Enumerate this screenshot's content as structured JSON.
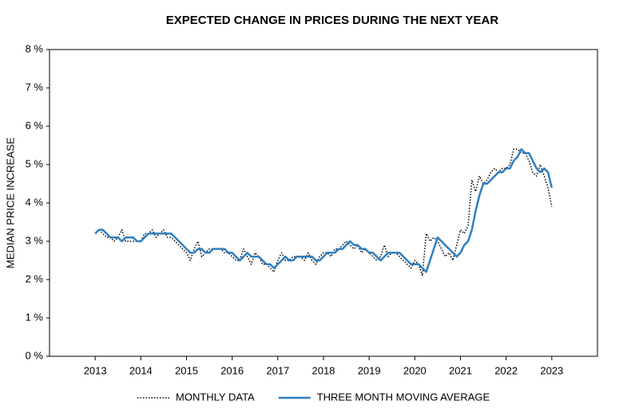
{
  "chart_data": {
    "type": "line",
    "title": "EXPECTED CHANGE IN PRICES DURING THE NEXT YEAR",
    "y_label": "MEDIAN PRICE INCREASE",
    "categories": [
      "2013",
      null,
      null,
      null,
      null,
      null,
      null,
      null,
      null,
      null,
      null,
      null,
      "2014",
      null,
      null,
      null,
      null,
      null,
      null,
      null,
      null,
      null,
      null,
      null,
      "2015",
      null,
      null,
      null,
      null,
      null,
      null,
      null,
      null,
      null,
      null,
      null,
      "2016",
      null,
      null,
      null,
      null,
      null,
      null,
      null,
      null,
      null,
      null,
      null,
      "2017",
      null,
      null,
      null,
      null,
      null,
      null,
      null,
      null,
      null,
      null,
      null,
      "2018",
      null,
      null,
      null,
      null,
      null,
      null,
      null,
      null,
      null,
      null,
      null,
      "2019",
      null,
      null,
      null,
      null,
      null,
      null,
      null,
      null,
      null,
      null,
      null,
      "2020",
      null,
      null,
      null,
      null,
      null,
      null,
      null,
      null,
      null,
      null,
      null,
      "2021",
      null,
      null,
      null,
      null,
      null,
      null,
      null,
      null,
      null,
      null,
      null,
      "2022",
      null,
      null,
      null,
      null,
      null,
      null,
      null,
      null,
      null,
      null,
      null,
      "2023"
    ],
    "series": [
      {
        "name": "MONTHLY DATA",
        "color": "#000000",
        "dash": "dotted",
        "values": [
          3.2,
          3.3,
          3.2,
          3.1,
          3.1,
          3.0,
          3.1,
          3.3,
          3.0,
          3.0,
          3.0,
          3.0,
          3.0,
          3.2,
          3.2,
          3.3,
          3.1,
          3.2,
          3.3,
          3.1,
          3.1,
          3.0,
          2.9,
          2.8,
          2.7,
          2.5,
          2.8,
          3.0,
          2.6,
          2.7,
          2.8,
          2.8,
          2.8,
          2.8,
          2.7,
          2.7,
          2.6,
          2.5,
          2.5,
          2.8,
          2.6,
          2.4,
          2.7,
          2.6,
          2.4,
          2.4,
          2.3,
          2.2,
          2.5,
          2.7,
          2.5,
          2.5,
          2.6,
          2.6,
          2.6,
          2.5,
          2.7,
          2.5,
          2.4,
          2.6,
          2.7,
          2.7,
          2.6,
          2.8,
          2.8,
          2.9,
          3.0,
          2.9,
          2.8,
          2.9,
          2.7,
          2.8,
          2.7,
          2.6,
          2.5,
          2.6,
          2.9,
          2.6,
          2.7,
          2.7,
          2.6,
          2.5,
          2.4,
          2.3,
          2.5,
          2.4,
          2.1,
          3.2,
          3.0,
          3.1,
          3.0,
          2.8,
          2.6,
          2.7,
          2.5,
          2.9,
          3.3,
          3.2,
          3.4,
          4.6,
          4.3,
          4.7,
          4.5,
          4.6,
          4.8,
          4.9,
          4.8,
          4.9,
          4.9,
          5.0,
          5.4,
          5.4,
          5.3,
          5.3,
          5.1,
          4.8,
          4.7,
          5.0,
          4.7,
          4.4,
          3.9
        ]
      },
      {
        "name": "THREE MONTH MOVING AVERAGE",
        "color": "#2e7fc1",
        "dash": "solid",
        "values": [
          3.2,
          3.3,
          3.3,
          3.2,
          3.1,
          3.1,
          3.1,
          3.0,
          3.1,
          3.1,
          3.1,
          3.0,
          3.0,
          3.1,
          3.2,
          3.2,
          3.2,
          3.2,
          3.2,
          3.2,
          3.2,
          3.1,
          3.0,
          2.9,
          2.8,
          2.7,
          2.7,
          2.8,
          2.8,
          2.7,
          2.7,
          2.8,
          2.8,
          2.8,
          2.8,
          2.7,
          2.7,
          2.6,
          2.5,
          2.6,
          2.7,
          2.6,
          2.6,
          2.6,
          2.5,
          2.4,
          2.4,
          2.3,
          2.4,
          2.5,
          2.6,
          2.5,
          2.5,
          2.6,
          2.6,
          2.6,
          2.6,
          2.6,
          2.5,
          2.5,
          2.6,
          2.7,
          2.7,
          2.7,
          2.8,
          2.8,
          2.9,
          3.0,
          2.9,
          2.9,
          2.8,
          2.8,
          2.7,
          2.7,
          2.6,
          2.5,
          2.6,
          2.7,
          2.7,
          2.7,
          2.7,
          2.6,
          2.5,
          2.4,
          2.4,
          2.4,
          2.3,
          2.2,
          2.5,
          2.8,
          3.1,
          3.0,
          2.9,
          2.8,
          2.7,
          2.6,
          2.7,
          2.9,
          3.0,
          3.3,
          3.8,
          4.2,
          4.5,
          4.5,
          4.6,
          4.7,
          4.8,
          4.8,
          4.9,
          4.9,
          5.1,
          5.2,
          5.4,
          5.3,
          5.3,
          5.1,
          4.9,
          4.8,
          4.9,
          4.8,
          4.4
        ]
      }
    ],
    "ylim": [
      0,
      8
    ],
    "yticks": [
      {
        "value": 0,
        "label": "0 %"
      },
      {
        "value": 1,
        "label": "1 %"
      },
      {
        "value": 2,
        "label": "2 %"
      },
      {
        "value": 3,
        "label": "3 %"
      },
      {
        "value": 4,
        "label": "4 %"
      },
      {
        "value": 5,
        "label": "5 %"
      },
      {
        "value": 6,
        "label": "6 %"
      },
      {
        "value": 7,
        "label": "7 %"
      },
      {
        "value": 8,
        "label": "8 %"
      }
    ],
    "grid": false,
    "legend": "bottom"
  }
}
